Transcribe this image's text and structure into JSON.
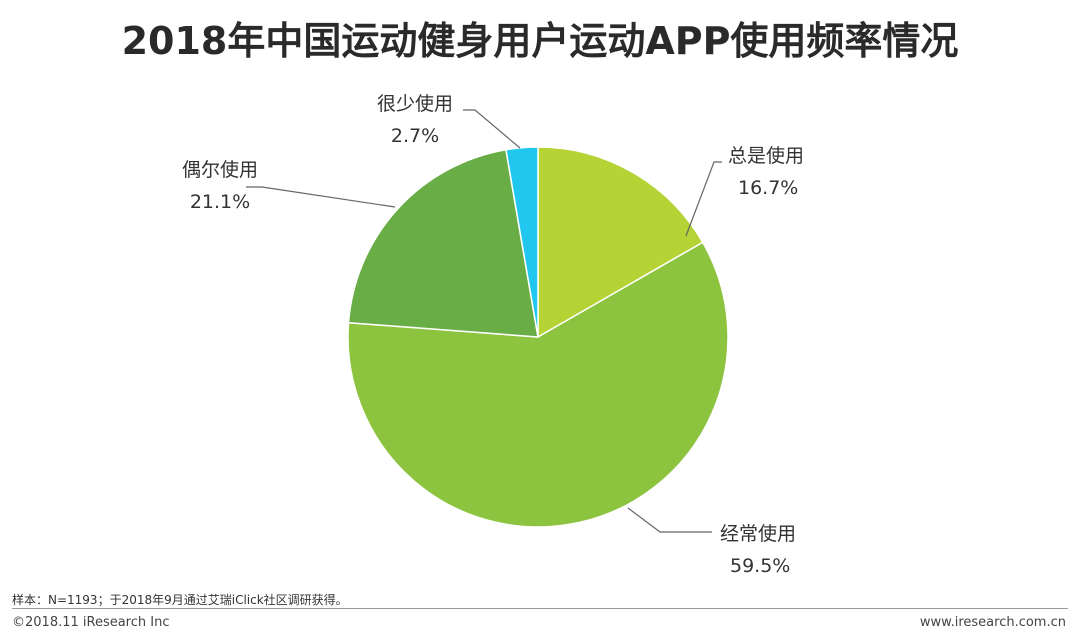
{
  "chart_data": {
    "type": "pie",
    "title": "2018年中国运动健身用户运动APP使用频率情况",
    "slices": [
      {
        "label": "总是使用",
        "value": 16.7,
        "display": "16.7%",
        "color": "#b5d335"
      },
      {
        "label": "经常使用",
        "value": 59.5,
        "display": "59.5%",
        "color": "#8cc33f"
      },
      {
        "label": "偶尔使用",
        "value": 21.1,
        "display": "21.1%",
        "color": "#68ad45"
      },
      {
        "label": "很少使用",
        "value": 2.7,
        "display": "2.7%",
        "color": "#22c7f0"
      }
    ],
    "start_angle": "12 o'clock",
    "direction": "clockwise"
  },
  "footer": {
    "note": "样本：N=1193；于2018年9月通过艾瑞iClick社区调研获得。",
    "copyright": "©2018.11 iResearch Inc",
    "site": "www.iresearch.com.cn"
  }
}
